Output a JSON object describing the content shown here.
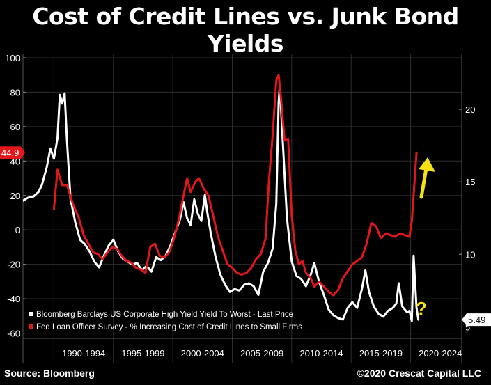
{
  "title": "Cost of Credit Lines vs. Junk Bond Yields",
  "source": "Source: Bloomberg",
  "copyright": "©2020 Crescat Capital LLC",
  "chart_data": {
    "type": "line",
    "x_categories": [
      "1990-1994",
      "1995-1999",
      "2000-2004",
      "2005-2009",
      "2010-2014",
      "2015-2019",
      "2020-2024"
    ],
    "x_range": [
      1987.4,
      2024.3
    ],
    "left_axis": {
      "ticks": [
        100,
        80,
        60,
        40,
        20,
        0,
        -20,
        -40,
        -60
      ],
      "ylim": [
        -63,
        102
      ]
    },
    "right_axis": {
      "ticks": [
        20,
        15,
        10,
        5
      ],
      "ylim": [
        4.2,
        23.8
      ]
    },
    "last_value_left": "44.9",
    "last_value_right": "5.49",
    "annotation_question": "?",
    "annotation_arrow": "up-arrow",
    "legend_position": "bottom-left",
    "colors": {
      "background": "#000000",
      "high_yield": "#ffffff",
      "fed_survey": "#e3161b",
      "arrow": "#f5e014",
      "question": "#f5e014",
      "grid": "#2e2e2e"
    },
    "series": [
      {
        "name": "Bloomberg Barclays US Corporate High Yield Yield To Worst - Last Price",
        "axis": "right",
        "color": "#ffffff",
        "points": [
          [
            1987.4,
            13.7
          ],
          [
            1987.8,
            13.9
          ],
          [
            1988.3,
            14.0
          ],
          [
            1988.7,
            14.3
          ],
          [
            1989.0,
            14.8
          ],
          [
            1989.4,
            16.0
          ],
          [
            1989.7,
            17.3
          ],
          [
            1990.0,
            16.6
          ],
          [
            1990.3,
            18.0
          ],
          [
            1990.5,
            21.0
          ],
          [
            1990.7,
            20.4
          ],
          [
            1990.9,
            21.1
          ],
          [
            1991.1,
            17.8
          ],
          [
            1991.4,
            13.8
          ],
          [
            1991.8,
            12.2
          ],
          [
            1992.2,
            11.0
          ],
          [
            1992.6,
            10.7
          ],
          [
            1993.0,
            10.2
          ],
          [
            1993.4,
            9.5
          ],
          [
            1993.8,
            9.1
          ],
          [
            1994.2,
            9.9
          ],
          [
            1994.6,
            10.6
          ],
          [
            1995.0,
            11.0
          ],
          [
            1995.4,
            10.2
          ],
          [
            1995.8,
            9.7
          ],
          [
            1996.2,
            9.5
          ],
          [
            1996.6,
            9.3
          ],
          [
            1997.0,
            9.4
          ],
          [
            1997.4,
            8.9
          ],
          [
            1997.8,
            9.2
          ],
          [
            1998.2,
            8.8
          ],
          [
            1998.6,
            9.8
          ],
          [
            1999.0,
            9.6
          ],
          [
            1999.4,
            9.9
          ],
          [
            1999.8,
            10.6
          ],
          [
            2000.2,
            11.5
          ],
          [
            2000.6,
            12.4
          ],
          [
            2000.9,
            13.6
          ],
          [
            2001.2,
            12.5
          ],
          [
            2001.5,
            12.0
          ],
          [
            2001.8,
            13.8
          ],
          [
            2002.1,
            12.8
          ],
          [
            2002.4,
            12.3
          ],
          [
            2002.7,
            14.1
          ],
          [
            2002.9,
            12.9
          ],
          [
            2003.2,
            11.4
          ],
          [
            2003.6,
            9.8
          ],
          [
            2004.0,
            8.6
          ],
          [
            2004.4,
            7.9
          ],
          [
            2004.8,
            7.4
          ],
          [
            2005.2,
            7.6
          ],
          [
            2005.6,
            7.5
          ],
          [
            2006.0,
            7.9
          ],
          [
            2006.4,
            8.0
          ],
          [
            2006.8,
            7.8
          ],
          [
            2007.2,
            7.2
          ],
          [
            2007.6,
            8.8
          ],
          [
            2008.0,
            9.4
          ],
          [
            2008.4,
            10.4
          ],
          [
            2008.7,
            13.5
          ],
          [
            2008.9,
            20.5
          ],
          [
            2009.0,
            21.7
          ],
          [
            2009.2,
            18.5
          ],
          [
            2009.6,
            12.5
          ],
          [
            2010.0,
            9.5
          ],
          [
            2010.4,
            8.5
          ],
          [
            2010.8,
            8.3
          ],
          [
            2011.2,
            7.8
          ],
          [
            2011.6,
            8.6
          ],
          [
            2011.9,
            9.4
          ],
          [
            2012.3,
            8.1
          ],
          [
            2012.7,
            7.2
          ],
          [
            2013.1,
            6.2
          ],
          [
            2013.5,
            5.8
          ],
          [
            2013.9,
            5.6
          ],
          [
            2014.3,
            5.5
          ],
          [
            2014.7,
            6.3
          ],
          [
            2015.1,
            6.7
          ],
          [
            2015.5,
            6.3
          ],
          [
            2015.9,
            7.6
          ],
          [
            2016.2,
            8.9
          ],
          [
            2016.5,
            7.4
          ],
          [
            2016.9,
            6.4
          ],
          [
            2017.3,
            5.9
          ],
          [
            2017.7,
            5.7
          ],
          [
            2018.1,
            6.1
          ],
          [
            2018.5,
            6.3
          ],
          [
            2018.8,
            6.6
          ],
          [
            2019.0,
            8.0
          ],
          [
            2019.3,
            6.4
          ],
          [
            2019.7,
            6.0
          ],
          [
            2019.9,
            6.1
          ],
          [
            2020.1,
            5.4
          ],
          [
            2020.25,
            9.9
          ],
          [
            2020.35,
            8.4
          ],
          [
            2020.5,
            6.3
          ],
          [
            2020.65,
            5.49
          ]
        ]
      },
      {
        "name": "Fed Loan Officer Survey - % Increasing Cost of Credit Lines to Small Firms",
        "axis": "left",
        "color": "#e3161b",
        "points": [
          [
            1990.0,
            12
          ],
          [
            1990.3,
            35
          ],
          [
            1990.7,
            26
          ],
          [
            1991.1,
            26
          ],
          [
            1991.6,
            15
          ],
          [
            1992.1,
            7
          ],
          [
            1992.5,
            -3
          ],
          [
            1992.9,
            -8
          ],
          [
            1993.3,
            -13
          ],
          [
            1993.7,
            -14
          ],
          [
            1994.1,
            -17
          ],
          [
            1994.5,
            -13
          ],
          [
            1994.9,
            -10
          ],
          [
            1995.3,
            -11
          ],
          [
            1995.7,
            -15
          ],
          [
            1996.1,
            -18
          ],
          [
            1996.5,
            -19
          ],
          [
            1996.9,
            -22
          ],
          [
            1997.3,
            -23
          ],
          [
            1997.7,
            -25
          ],
          [
            1998.1,
            -10
          ],
          [
            1998.5,
            -8
          ],
          [
            1998.9,
            -15
          ],
          [
            1999.3,
            -16
          ],
          [
            1999.7,
            -13
          ],
          [
            2000.1,
            -5
          ],
          [
            2000.5,
            6
          ],
          [
            2000.9,
            20
          ],
          [
            2001.2,
            30
          ],
          [
            2001.5,
            22
          ],
          [
            2001.9,
            28
          ],
          [
            2002.2,
            30
          ],
          [
            2002.6,
            24
          ],
          [
            2003.0,
            20
          ],
          [
            2003.4,
            8
          ],
          [
            2003.8,
            -4
          ],
          [
            2004.2,
            -12
          ],
          [
            2004.6,
            -20
          ],
          [
            2005.0,
            -22
          ],
          [
            2005.4,
            -25
          ],
          [
            2005.8,
            -26
          ],
          [
            2006.2,
            -25
          ],
          [
            2006.6,
            -22
          ],
          [
            2007.0,
            -17
          ],
          [
            2007.4,
            -14
          ],
          [
            2007.8,
            -5
          ],
          [
            2008.1,
            30
          ],
          [
            2008.4,
            55
          ],
          [
            2008.7,
            87
          ],
          [
            2008.9,
            90
          ],
          [
            2009.1,
            76
          ],
          [
            2009.4,
            52
          ],
          [
            2009.7,
            53
          ],
          [
            2010.0,
            8
          ],
          [
            2010.3,
            -12
          ],
          [
            2010.6,
            -20
          ],
          [
            2010.9,
            -18
          ],
          [
            2011.2,
            -25
          ],
          [
            2011.6,
            -28
          ],
          [
            2011.9,
            -33
          ],
          [
            2012.3,
            -30
          ],
          [
            2012.7,
            -33
          ],
          [
            2013.1,
            -36
          ],
          [
            2013.5,
            -38
          ],
          [
            2013.9,
            -35
          ],
          [
            2014.3,
            -28
          ],
          [
            2014.7,
            -24
          ],
          [
            2015.1,
            -20
          ],
          [
            2015.5,
            -18
          ],
          [
            2015.9,
            -16
          ],
          [
            2016.3,
            -8
          ],
          [
            2016.7,
            4
          ],
          [
            2017.1,
            2
          ],
          [
            2017.5,
            -5
          ],
          [
            2017.9,
            -2
          ],
          [
            2018.3,
            -3
          ],
          [
            2018.7,
            -4
          ],
          [
            2019.1,
            -2
          ],
          [
            2019.5,
            -3
          ],
          [
            2019.9,
            -4
          ],
          [
            2020.1,
            5
          ],
          [
            2020.3,
            25
          ],
          [
            2020.5,
            44.9
          ]
        ]
      }
    ]
  }
}
